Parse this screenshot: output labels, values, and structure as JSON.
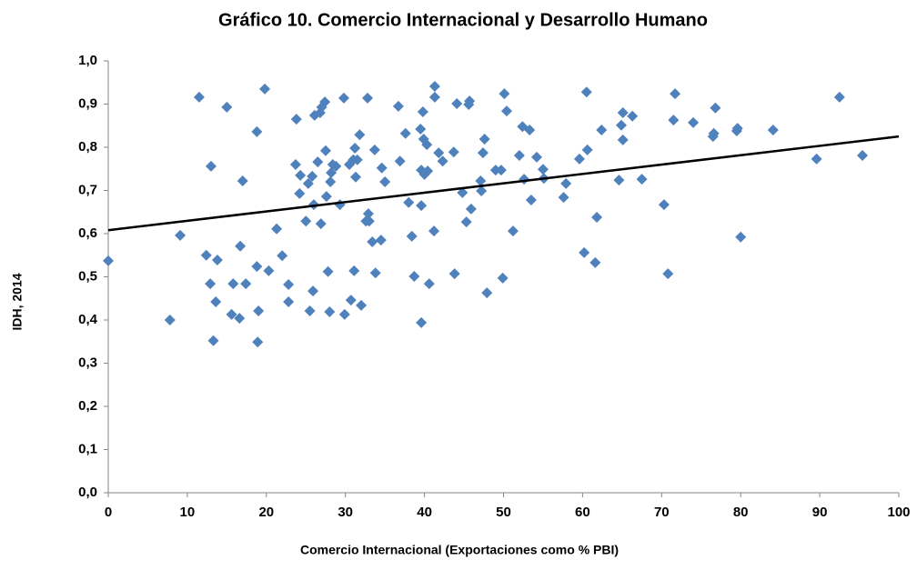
{
  "chart_data": {
    "type": "scatter",
    "title": "Gráfico 10. Comercio Internacional y Desarrollo Humano",
    "x_label": "Comercio Internacional (Exportaciones como % PBI)",
    "y_label": "IDH, 2014",
    "color": "#4f81bd",
    "xlim": [
      0,
      100
    ],
    "ylim": [
      0,
      1
    ],
    "xticks": [
      0,
      10,
      20,
      30,
      40,
      50,
      60,
      70,
      80,
      90,
      100
    ],
    "yticks": [
      {
        "value": 0,
        "label": "0,0"
      },
      {
        "value": 0.1,
        "label": "0,1"
      },
      {
        "value": 0.2,
        "label": "0,2"
      },
      {
        "value": 0.3,
        "label": "0,3"
      },
      {
        "value": 0.4,
        "label": "0,4"
      },
      {
        "value": 0.5,
        "label": "0,5"
      },
      {
        "value": 0.6,
        "label": "0,6"
      },
      {
        "value": 0.7,
        "label": "0,7"
      },
      {
        "value": 0.8,
        "label": "0,8"
      },
      {
        "value": 0.9,
        "label": "0,9"
      },
      {
        "value": 1,
        "label": "1,0"
      }
    ],
    "grid": false,
    "x": [
      0,
      7.8,
      9.1,
      11.5,
      12.4,
      12.9,
      13.0,
      13.3,
      13.6,
      13.8,
      15.0,
      15.6,
      15.8,
      16.6,
      16.7,
      17.0,
      17.4,
      18.8,
      18.8,
      18.9,
      19.0,
      19.8,
      20.3,
      21.3,
      22.0,
      22.8,
      22.8,
      23.7,
      23.8,
      24.2,
      24.3,
      25.0,
      25.3,
      25.5,
      25.8,
      25.9,
      26.0,
      26.1,
      26.5,
      26.8,
      26.9,
      27.0,
      27.4,
      27.5,
      27.6,
      27.8,
      28.0,
      28.1,
      28.2,
      28.4,
      28.8,
      29.3,
      29.8,
      29.9,
      30.5,
      30.7,
      31.0,
      31.1,
      31.2,
      31.3,
      31.5,
      31.8,
      32.0,
      32.6,
      32.8,
      32.9,
      33.0,
      33.4,
      33.7,
      33.8,
      34.5,
      34.6,
      35.0,
      36.7,
      36.9,
      37.6,
      38.0,
      38.4,
      38.7,
      39.5,
      39.6,
      39.6,
      39.6,
      39.8,
      39.9,
      40.0,
      40.3,
      40.4,
      40.6,
      41.2,
      41.3,
      41.3,
      41.8,
      42.3,
      43.7,
      43.8,
      44.1,
      44.8,
      45.3,
      45.6,
      45.7,
      45.9,
      47.1,
      47.2,
      47.4,
      47.6,
      47.9,
      49.0,
      49.7,
      49.9,
      50.1,
      50.4,
      51.2,
      52.0,
      52.4,
      52.6,
      53.3,
      53.5,
      54.2,
      55.0,
      55.1,
      57.6,
      57.9,
      59.6,
      60.2,
      60.5,
      60.6,
      61.6,
      61.8,
      62.4,
      64.6,
      64.9,
      65.1,
      65.1,
      66.3,
      67.5,
      70.3,
      70.8,
      71.5,
      71.7,
      74.0,
      76.5,
      76.8,
      76.6,
      79.5,
      79.6,
      80.0,
      84.1,
      89.6,
      92.5,
      95.4
    ],
    "values": [
      0.537,
      0.4,
      0.596,
      0.916,
      0.55,
      0.484,
      0.756,
      0.352,
      0.442,
      0.539,
      0.893,
      0.413,
      0.484,
      0.404,
      0.571,
      0.722,
      0.484,
      0.836,
      0.524,
      0.349,
      0.421,
      0.935,
      0.514,
      0.611,
      0.549,
      0.482,
      0.442,
      0.76,
      0.865,
      0.693,
      0.735,
      0.629,
      0.716,
      0.421,
      0.733,
      0.467,
      0.667,
      0.874,
      0.766,
      0.88,
      0.623,
      0.893,
      0.905,
      0.792,
      0.686,
      0.512,
      0.419,
      0.72,
      0.741,
      0.76,
      0.756,
      0.667,
      0.914,
      0.413,
      0.76,
      0.446,
      0.771,
      0.514,
      0.798,
      0.731,
      0.771,
      0.829,
      0.434,
      0.629,
      0.914,
      0.646,
      0.629,
      0.581,
      0.794,
      0.509,
      0.585,
      0.752,
      0.72,
      0.895,
      0.768,
      0.832,
      0.672,
      0.594,
      0.501,
      0.842,
      0.747,
      0.394,
      0.665,
      0.882,
      0.819,
      0.737,
      0.806,
      0.745,
      0.484,
      0.606,
      0.941,
      0.916,
      0.787,
      0.768,
      0.789,
      0.507,
      0.901,
      0.695,
      0.627,
      0.899,
      0.907,
      0.657,
      0.722,
      0.699,
      0.787,
      0.819,
      0.463,
      0.747,
      0.747,
      0.497,
      0.924,
      0.884,
      0.606,
      0.781,
      0.848,
      0.726,
      0.84,
      0.678,
      0.777,
      0.749,
      0.728,
      0.684,
      0.716,
      0.773,
      0.556,
      0.928,
      0.794,
      0.533,
      0.638,
      0.84,
      0.724,
      0.851,
      0.88,
      0.817,
      0.872,
      0.726,
      0.667,
      0.507,
      0.863,
      0.924,
      0.857,
      0.825,
      0.891,
      0.832,
      0.838,
      0.844,
      0.592,
      0.84,
      0.773,
      0.916,
      0.781
    ],
    "trendline": {
      "x": [
        0,
        100
      ],
      "values": [
        0.608,
        0.825
      ],
      "color": "#000000"
    }
  }
}
